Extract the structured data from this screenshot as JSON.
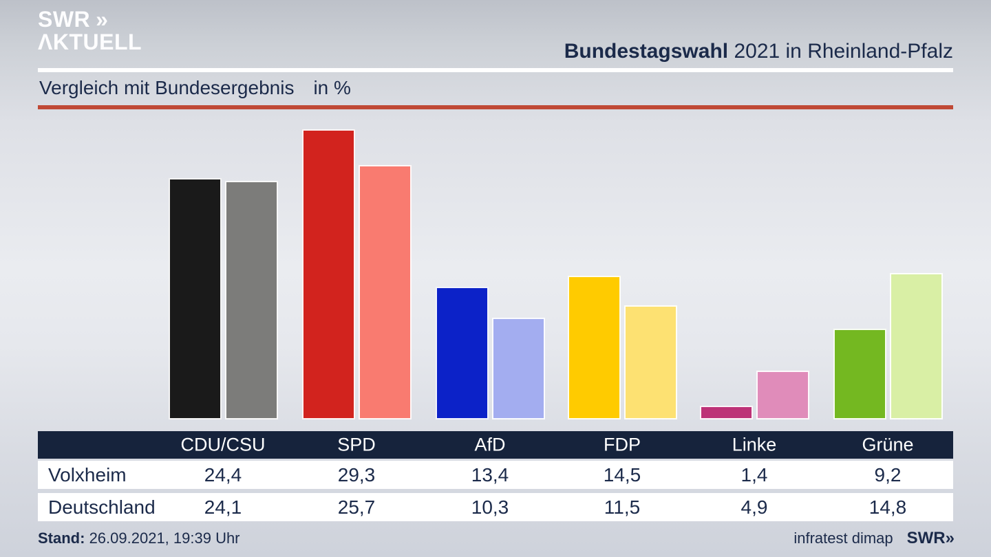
{
  "brand": {
    "logo_line1": "SWR",
    "logo_chevrons": "»",
    "logo_line2": "ΛKTUELL"
  },
  "header": {
    "title_bold": "Bundestagswahl",
    "title_rest": " 2021 in Rheinland-Pfalz"
  },
  "subtitle": {
    "text": "Vergleich mit Bundesergebnis",
    "unit": "in %"
  },
  "chart_data": {
    "type": "bar",
    "title": "Vergleich mit Bundesergebnis in %",
    "categories": [
      "CDU/CSU",
      "SPD",
      "AfD",
      "FDP",
      "Linke",
      "Grüne"
    ],
    "series": [
      {
        "name": "Volxheim",
        "values": [
          24.4,
          29.3,
          13.4,
          14.5,
          1.4,
          9.2
        ],
        "colors": [
          "#1a1a1a",
          "#d2231e",
          "#0c22c8",
          "#ffcb00",
          "#bd3277",
          "#74b821"
        ]
      },
      {
        "name": "Deutschland",
        "values": [
          24.1,
          25.7,
          10.3,
          11.5,
          4.9,
          14.8
        ],
        "colors": [
          "#7c7c7a",
          "#f97b70",
          "#a3adf0",
          "#fde172",
          "#e08cba",
          "#d9efa5"
        ]
      }
    ],
    "ylim": [
      0,
      31
    ],
    "grid": false,
    "legend_position": "table-below"
  },
  "table": {
    "columns": [
      "CDU/CSU",
      "SPD",
      "AfD",
      "FDP",
      "Linke",
      "Grüne"
    ],
    "rows": [
      {
        "label": "Volxheim",
        "values": [
          "24,4",
          "29,3",
          "13,4",
          "14,5",
          "1,4",
          "9,2"
        ]
      },
      {
        "label": "Deutschland",
        "values": [
          "24,1",
          "25,7",
          "10,3",
          "11,5",
          "4,9",
          "14,8"
        ]
      }
    ]
  },
  "footer": {
    "stand_label": "Stand:",
    "stand_value": " 26.09.2021, 19:39 Uhr",
    "source": "infratest dimap",
    "logo": "SWR",
    "logo_chevrons": "»"
  },
  "colors": {
    "navy_text": "#1b2a4a",
    "table_header_bg": "#16233c",
    "accent_line": "#c04936",
    "divider_line": "#ffffff"
  }
}
